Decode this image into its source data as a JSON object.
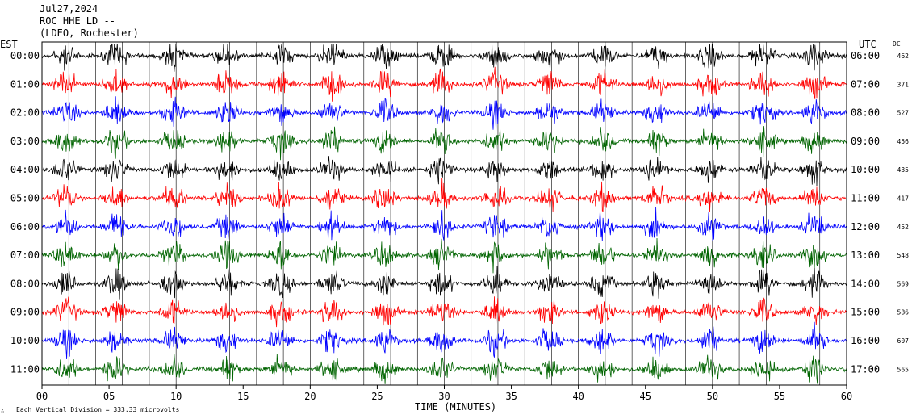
{
  "header": {
    "line1": "Jul27,2024",
    "line2": "ROC HHE LD --",
    "line3": "(LDEO, Rochester)"
  },
  "labels": {
    "left_tz": "EST",
    "right_tz": "UTC",
    "dc": "DC",
    "xlabel": "TIME (MINUTES)",
    "footer": "Each Vertical Division =  333.33 microvolts"
  },
  "chart_data": {
    "type": "line",
    "title": "Jul27,2024 ROC HHE LD -- (LDEO, Rochester)",
    "xlabel": "TIME (MINUTES)",
    "xlim": [
      0,
      60
    ],
    "x_ticks": [
      "00",
      "05",
      "10",
      "15",
      "20",
      "25",
      "30",
      "35",
      "40",
      "45",
      "50",
      "55",
      "60"
    ],
    "trace_colors": [
      "#000000",
      "#ff0000",
      "#0000ff",
      "#006400"
    ],
    "rows": [
      {
        "est": "00:00",
        "utc": "06:00",
        "dc": "462"
      },
      {
        "est": "01:00",
        "utc": "07:00",
        "dc": "371"
      },
      {
        "est": "02:00",
        "utc": "08:00",
        "dc": "527"
      },
      {
        "est": "03:00",
        "utc": "09:00",
        "dc": "456"
      },
      {
        "est": "04:00",
        "utc": "10:00",
        "dc": "435"
      },
      {
        "est": "05:00",
        "utc": "11:00",
        "dc": "417"
      },
      {
        "est": "06:00",
        "utc": "12:00",
        "dc": "452"
      },
      {
        "est": "07:00",
        "utc": "13:00",
        "dc": "548"
      },
      {
        "est": "08:00",
        "utc": "14:00",
        "dc": "569"
      },
      {
        "est": "09:00",
        "utc": "15:00",
        "dc": "586"
      },
      {
        "est": "10:00",
        "utc": "16:00",
        "dc": "607"
      },
      {
        "est": "11:00",
        "utc": "17:00",
        "dc": "565"
      }
    ],
    "burst_minutes": [
      1.8,
      5.5,
      9.8,
      13.8,
      17.8,
      21.6,
      25.6,
      29.8,
      33.8,
      37.8,
      41.8,
      45.8,
      49.8,
      53.8,
      57.6
    ],
    "grid": true
  }
}
